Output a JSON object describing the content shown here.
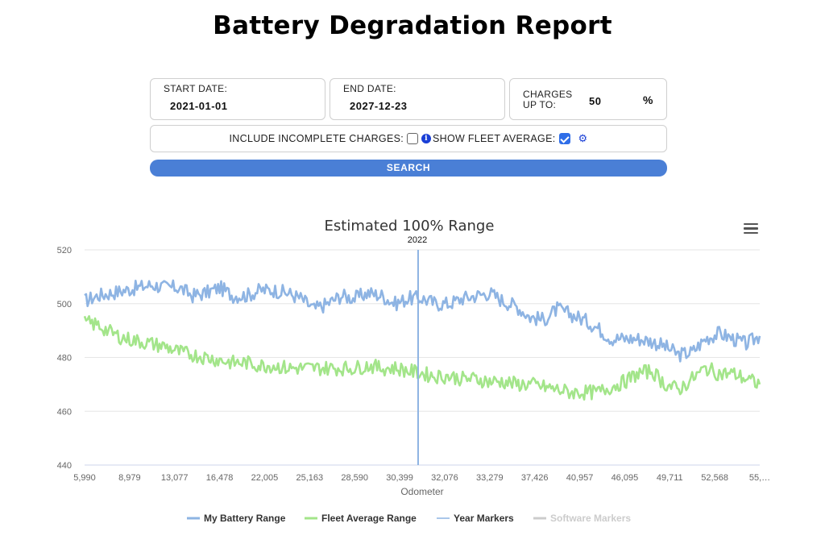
{
  "page_title": "Battery Degradation Report",
  "filters": {
    "start_date_label": "START DATE:",
    "start_date_value": "2021-01-01",
    "end_date_label": "END DATE:",
    "end_date_value": "2027-12-23",
    "charges_label_line1": "CHARGES",
    "charges_label_line2": "UP TO:",
    "charges_value": "50",
    "charges_unit": "%",
    "incomplete_label": "INCLUDE INCOMPLETE CHARGES:",
    "incomplete_checked": false,
    "fleet_label": "SHOW FLEET AVERAGE:",
    "fleet_checked": true,
    "search_label": "SEARCH"
  },
  "chart_data": {
    "type": "line",
    "title": "Estimated 100% Range",
    "xlabel": "Odometer",
    "ylabel": "",
    "ylim": [
      440,
      520
    ],
    "yticks": [
      440,
      460,
      480,
      500,
      520
    ],
    "xtick_labels": [
      "5,990",
      "8,979",
      "13,077",
      "16,478",
      "22,005",
      "25,163",
      "28,590",
      "30,399",
      "32,076",
      "33,279",
      "37,426",
      "40,957",
      "46,095",
      "49,711",
      "52,568",
      "55,…"
    ],
    "grid": true,
    "legend_position": "bottom",
    "year_marker": {
      "label": "2022",
      "position_fraction": 0.494
    },
    "series": [
      {
        "name": "My Battery Range",
        "color": "#8eb4e3",
        "x": [
          0.0,
          0.02,
          0.04,
          0.06,
          0.08,
          0.1,
          0.12,
          0.14,
          0.16,
          0.18,
          0.2,
          0.22,
          0.24,
          0.26,
          0.28,
          0.3,
          0.32,
          0.34,
          0.36,
          0.38,
          0.4,
          0.42,
          0.44,
          0.46,
          0.48,
          0.5,
          0.52,
          0.54,
          0.56,
          0.58,
          0.6,
          0.62,
          0.64,
          0.66,
          0.68,
          0.7,
          0.72,
          0.74,
          0.76,
          0.78,
          0.8,
          0.82,
          0.84,
          0.86,
          0.88,
          0.9,
          0.92,
          0.94,
          0.96,
          0.98,
          1.0
        ],
        "values": [
          501,
          503,
          504,
          505,
          506,
          507,
          506,
          506,
          503,
          504,
          506,
          503,
          503,
          505,
          505,
          504,
          502,
          498,
          500,
          503,
          502,
          504,
          503,
          500,
          502,
          502,
          500,
          500,
          502,
          503,
          504,
          501,
          499,
          495,
          494,
          498,
          496,
          494,
          491,
          487,
          487,
          487,
          486,
          484,
          481,
          482,
          487,
          489,
          487,
          485,
          488
        ]
      },
      {
        "name": "Fleet Average Range",
        "color": "#a3e58a",
        "x": [
          0.0,
          0.02,
          0.04,
          0.06,
          0.08,
          0.1,
          0.12,
          0.14,
          0.16,
          0.18,
          0.2,
          0.22,
          0.24,
          0.26,
          0.28,
          0.3,
          0.32,
          0.34,
          0.36,
          0.38,
          0.4,
          0.42,
          0.44,
          0.46,
          0.48,
          0.5,
          0.52,
          0.54,
          0.56,
          0.58,
          0.6,
          0.62,
          0.64,
          0.66,
          0.68,
          0.7,
          0.72,
          0.74,
          0.76,
          0.78,
          0.8,
          0.82,
          0.84,
          0.86,
          0.88,
          0.9,
          0.92,
          0.94,
          0.96,
          0.98,
          1.0
        ],
        "values": [
          493,
          492,
          489,
          487,
          486,
          485,
          484,
          482,
          481,
          480,
          479,
          478,
          478,
          477,
          477,
          476,
          476,
          476,
          476,
          476,
          476,
          477,
          476,
          476,
          475,
          474,
          473,
          473,
          472,
          472,
          471,
          471,
          470,
          470,
          469,
          468,
          467,
          467,
          467,
          469,
          471,
          474,
          475,
          470,
          468,
          472,
          476,
          474,
          474,
          472,
          470
        ]
      },
      {
        "name": "Year Markers",
        "color": "#8eb4e3",
        "values": []
      },
      {
        "name": "Software Markers",
        "color": "#cccccc",
        "values": []
      }
    ]
  }
}
